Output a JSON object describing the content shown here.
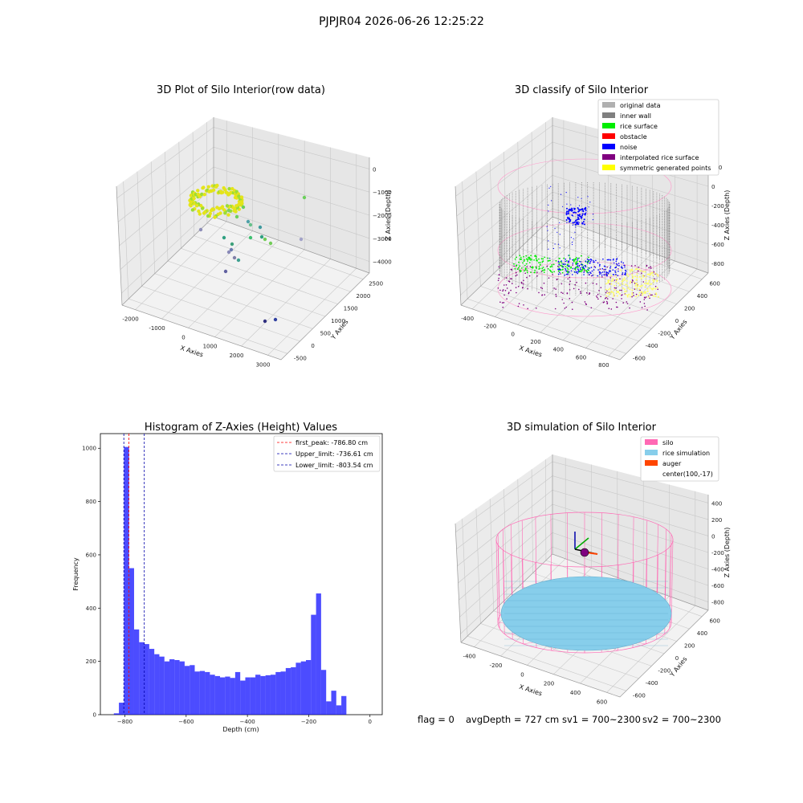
{
  "figure": {
    "suptitle": "PJPJR04 2026-06-26 12:25:22",
    "footer": {
      "flag": "flag = 0",
      "avg_depth": "avgDepth = 727 cm",
      "sv1": "sv1 = 700~2300",
      "sv2": "sv2 = 700~2300"
    }
  },
  "chart_data": [
    {
      "type": "scatter3d",
      "title": "3D Plot of Silo Interior(row data)",
      "xlabel": "X Axies",
      "ylabel": "Y Axies",
      "zlabel": "Z Axies (Depth)",
      "x_ticks": [
        "-2000",
        "-1000",
        "0",
        "1000",
        "2000",
        "3000"
      ],
      "y_ticks": [
        "-500",
        "0",
        "500",
        "1000",
        "1500",
        "2000",
        "2500"
      ],
      "z_ticks": [
        "0",
        "−1000",
        "−2000",
        "−3000",
        "−4000"
      ],
      "xlim": [
        -2500,
        3300
      ],
      "ylim": [
        -700,
        2700
      ],
      "zlim": [
        -4500,
        200
      ],
      "grid": true,
      "colormap": "viridis"
    },
    {
      "type": "scatter3d",
      "title": "3D classify of Silo Interior",
      "xlabel": "X Axies",
      "ylabel": "Y Axies",
      "zlabel": "Z Axies (Depth)",
      "x_ticks": [
        "-400",
        "-200",
        "0",
        "200",
        "400",
        "600",
        "800"
      ],
      "y_ticks": [
        "-600",
        "-400",
        "-200",
        "0",
        "200",
        "400",
        "600"
      ],
      "z_ticks": [
        "200",
        "0",
        "-200",
        "-400",
        "-600",
        "-800"
      ],
      "grid": true,
      "legend_position": "top-right",
      "legend": [
        {
          "label": "original data",
          "color": "#b0b0b0"
        },
        {
          "label": "inner wall",
          "color": "#808080"
        },
        {
          "label": "rice surface",
          "color": "#00ee00"
        },
        {
          "label": "obstacle",
          "color": "#ff0000"
        },
        {
          "label": "noise",
          "color": "#0000ff"
        },
        {
          "label": "interpolated rice surface",
          "color": "#800080"
        },
        {
          "label": "symmetric generated points",
          "color": "#ffff00"
        }
      ]
    },
    {
      "type": "histogram",
      "title": "Histogram of Z-Axies (Height) Values",
      "xlabel": "Depth (cm)",
      "ylabel": "Frequency",
      "xlim": [
        -880,
        40
      ],
      "ylim": [
        0,
        1055
      ],
      "x_ticks": [
        "−800",
        "−600",
        "−400",
        "−200",
        "0"
      ],
      "y_ticks": [
        "0",
        "200",
        "400",
        "600",
        "800",
        "1000"
      ],
      "bar_color": "#0000ff",
      "bin_edges_start": -836,
      "bin_width": 16.5,
      "counts": [
        5,
        45,
        1005,
        550,
        320,
        272,
        265,
        247,
        227,
        218,
        200,
        208,
        205,
        200,
        183,
        186,
        162,
        164,
        160,
        150,
        145,
        140,
        143,
        138,
        160,
        128,
        140,
        140,
        150,
        145,
        148,
        150,
        160,
        162,
        175,
        178,
        195,
        200,
        205,
        375,
        455,
        168,
        50,
        90,
        35,
        70
      ],
      "legend_position": "top-right",
      "lines": [
        {
          "label": "first_peak: -786.80 cm",
          "x": -786.8,
          "color": "#ff0000"
        },
        {
          "label": "Upper_limit: -736.61 cm",
          "x": -736.61,
          "color": "#0000aa"
        },
        {
          "label": "Lower_limit: -803.54 cm",
          "x": -803.54,
          "color": "#0000aa"
        }
      ]
    },
    {
      "type": "surface3d",
      "title": "3D simulation of Silo Interior",
      "xlabel": "X Axies",
      "ylabel": "Y Axies",
      "zlabel": "Z Axies (Depth)",
      "x_ticks": [
        "-400",
        "-200",
        "0",
        "200",
        "400",
        "600"
      ],
      "y_ticks": [
        "-600",
        "-400",
        "-200",
        "0",
        "200",
        "400",
        "600"
      ],
      "z_ticks": [
        "400",
        "200",
        "0",
        "-200",
        "-400",
        "-600",
        "-800"
      ],
      "grid": true,
      "legend_position": "top-right",
      "legend": [
        {
          "label": "silo",
          "color": "#ff69b4"
        },
        {
          "label": "rice simulation",
          "color": "#87ceeb"
        },
        {
          "label": "auger",
          "color": "#ff4500"
        },
        {
          "label": "center(100,-17)",
          "color": ""
        }
      ]
    }
  ]
}
